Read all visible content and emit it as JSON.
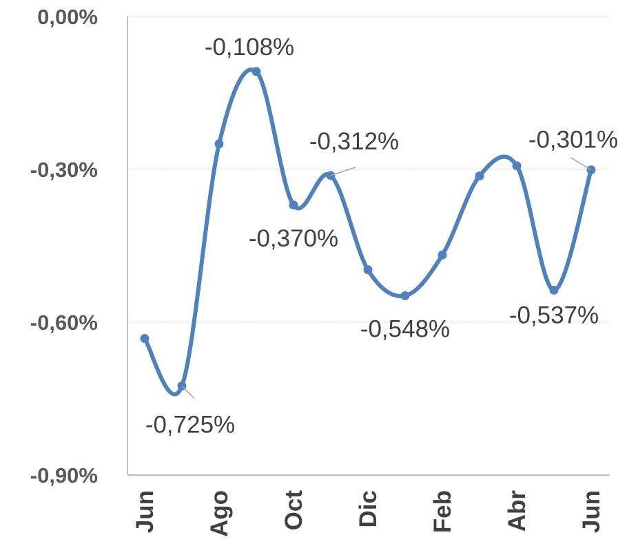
{
  "chart_data": {
    "type": "line",
    "title": "",
    "xlabel": "",
    "ylabel": "",
    "ylim": [
      -0.9,
      0.0
    ],
    "y_ticks": [
      {
        "value": 0.0,
        "label": "0,00%"
      },
      {
        "value": -0.3,
        "label": "-0,30%"
      },
      {
        "value": -0.6,
        "label": "-0,60%"
      },
      {
        "value": -0.9,
        "label": "-0,90%"
      }
    ],
    "x_tick_labels": [
      {
        "index": 0,
        "label": "Jun"
      },
      {
        "index": 2,
        "label": "Ago"
      },
      {
        "index": 4,
        "label": "Oct"
      },
      {
        "index": 6,
        "label": "Dic"
      },
      {
        "index": 8,
        "label": "Feb"
      },
      {
        "index": 10,
        "label": "Abr"
      },
      {
        "index": 12,
        "label": "Jun"
      }
    ],
    "grid": "horizontal",
    "legend": "none",
    "smooth": true,
    "color": "#4f81bd",
    "series": [
      {
        "values": [
          -0.632,
          -0.725,
          -0.25,
          -0.108,
          -0.37,
          -0.312,
          -0.497,
          -0.548,
          -0.468,
          -0.313,
          -0.293,
          -0.537,
          -0.301
        ]
      }
    ],
    "data_labels": [
      {
        "index": 1,
        "text": "-0,725%",
        "pos": "below-right"
      },
      {
        "index": 3,
        "text": "-0,108%",
        "pos": "above"
      },
      {
        "index": 4,
        "text": "-0,370%",
        "pos": "below"
      },
      {
        "index": 5,
        "text": "-0,312%",
        "pos": "above"
      },
      {
        "index": 7,
        "text": "-0,548%",
        "pos": "below"
      },
      {
        "index": 11,
        "text": "-0,537%",
        "pos": "below"
      },
      {
        "index": 12,
        "text": "-0,301%",
        "pos": "above-left"
      }
    ]
  }
}
